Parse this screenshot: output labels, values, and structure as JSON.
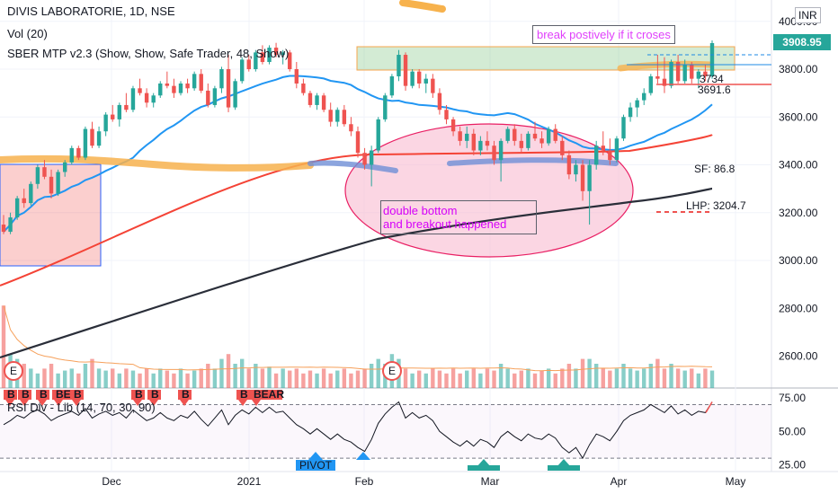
{
  "legend": {
    "main": "DIVIS LABORATORIE, 1D, NSE",
    "vol": "Vol (20)",
    "sber": "SBER MTP v2.3 (Show, Show, Safe Trader, 48, Show)",
    "rsi": "RSI Div - Lib (14, 70, 30, 90)"
  },
  "currency": "INR",
  "last_price_label": "3908.95",
  "annotations": {
    "breakout_note": "break postively if it croses",
    "double_bottom_line1": "double bottom",
    "double_bottom_line2": "and breakout happened",
    "sf": "SF: 86.8",
    "lhp": "LHP: 3204.7",
    "lvl_3734": "3734",
    "lvl_3691": "3691.6",
    "pivot": "PIVOT",
    "bear": "BEAR",
    "b": "B",
    "be": "BE"
  },
  "earnings_marker": "E",
  "colors": {
    "up": "#26a69a",
    "down": "#ef5350",
    "ma_blue": "#2196f3",
    "ma_red": "#f44336",
    "ma_black": "#2a2e39",
    "orange_band": "#f7b24d",
    "highlight_pink": "#f8bbd0",
    "rsi_line": "#131722",
    "vol_avg": "#f6a05a",
    "note_purple": "#e040fb"
  },
  "chart_data": {
    "type": "candlestick",
    "price_axis": {
      "ticks": [
        3000,
        3200,
        3400,
        3600,
        3800,
        4000
      ],
      "min": 2500,
      "max": 4060
    },
    "time_axis": {
      "ticks": [
        "Dec",
        "2021",
        "Feb",
        "Mar",
        "Apr",
        "May"
      ]
    },
    "rsi_axis": {
      "ticks": [
        25,
        50,
        75
      ],
      "overbought": 70,
      "oversold": 30
    },
    "ohlc": [
      [
        3150,
        3190,
        3110,
        3120
      ],
      [
        3120,
        3200,
        3110,
        3180
      ],
      [
        3180,
        3270,
        3170,
        3260
      ],
      [
        3260,
        3300,
        3220,
        3240
      ],
      [
        3240,
        3330,
        3230,
        3320
      ],
      [
        3320,
        3400,
        3300,
        3390
      ],
      [
        3390,
        3420,
        3340,
        3350
      ],
      [
        3350,
        3380,
        3260,
        3280
      ],
      [
        3280,
        3380,
        3270,
        3370
      ],
      [
        3370,
        3420,
        3350,
        3410
      ],
      [
        3410,
        3480,
        3400,
        3470
      ],
      [
        3470,
        3480,
        3420,
        3430
      ],
      [
        3430,
        3560,
        3420,
        3550
      ],
      [
        3550,
        3580,
        3470,
        3480
      ],
      [
        3480,
        3560,
        3470,
        3540
      ],
      [
        3540,
        3620,
        3520,
        3610
      ],
      [
        3610,
        3650,
        3580,
        3590
      ],
      [
        3590,
        3660,
        3560,
        3650
      ],
      [
        3650,
        3700,
        3620,
        3630
      ],
      [
        3630,
        3730,
        3620,
        3720
      ],
      [
        3720,
        3760,
        3690,
        3700
      ],
      [
        3700,
        3720,
        3640,
        3660
      ],
      [
        3660,
        3700,
        3640,
        3690
      ],
      [
        3690,
        3750,
        3680,
        3740
      ],
      [
        3740,
        3790,
        3720,
        3730
      ],
      [
        3730,
        3760,
        3680,
        3700
      ],
      [
        3700,
        3750,
        3690,
        3740
      ],
      [
        3740,
        3760,
        3700,
        3720
      ],
      [
        3720,
        3790,
        3710,
        3780
      ],
      [
        3780,
        3800,
        3700,
        3710
      ],
      [
        3710,
        3740,
        3640,
        3650
      ],
      [
        3650,
        3730,
        3640,
        3720
      ],
      [
        3720,
        3810,
        3700,
        3800
      ],
      [
        3800,
        3860,
        3620,
        3640
      ],
      [
        3640,
        3760,
        3630,
        3750
      ],
      [
        3750,
        3850,
        3740,
        3840
      ],
      [
        3840,
        3860,
        3790,
        3800
      ],
      [
        3800,
        3880,
        3790,
        3870
      ],
      [
        3870,
        3900,
        3820,
        3830
      ],
      [
        3830,
        3900,
        3820,
        3890
      ],
      [
        3890,
        3910,
        3850,
        3860
      ],
      [
        3860,
        3880,
        3820,
        3870
      ],
      [
        3870,
        3880,
        3790,
        3800
      ],
      [
        3800,
        3830,
        3720,
        3740
      ],
      [
        3740,
        3760,
        3690,
        3700
      ],
      [
        3700,
        3710,
        3640,
        3650
      ],
      [
        3650,
        3700,
        3630,
        3690
      ],
      [
        3690,
        3700,
        3620,
        3630
      ],
      [
        3630,
        3660,
        3560,
        3580
      ],
      [
        3580,
        3640,
        3560,
        3630
      ],
      [
        3630,
        3650,
        3560,
        3570
      ],
      [
        3570,
        3600,
        3520,
        3540
      ],
      [
        3540,
        3560,
        3430,
        3450
      ],
      [
        3450,
        3470,
        3380,
        3400
      ],
      [
        3400,
        3480,
        3310,
        3460
      ],
      [
        3460,
        3600,
        3450,
        3590
      ],
      [
        3590,
        3700,
        3580,
        3690
      ],
      [
        3690,
        3780,
        3680,
        3770
      ],
      [
        3770,
        3880,
        3750,
        3860
      ],
      [
        3860,
        3870,
        3710,
        3730
      ],
      [
        3730,
        3800,
        3720,
        3790
      ],
      [
        3790,
        3800,
        3720,
        3740
      ],
      [
        3740,
        3780,
        3700,
        3760
      ],
      [
        3760,
        3780,
        3680,
        3700
      ],
      [
        3700,
        3720,
        3610,
        3630
      ],
      [
        3630,
        3650,
        3570,
        3590
      ],
      [
        3590,
        3600,
        3520,
        3540
      ],
      [
        3540,
        3560,
        3480,
        3500
      ],
      [
        3500,
        3560,
        3470,
        3530
      ],
      [
        3530,
        3550,
        3440,
        3460
      ],
      [
        3460,
        3520,
        3440,
        3500
      ],
      [
        3500,
        3540,
        3460,
        3480
      ],
      [
        3480,
        3500,
        3400,
        3420
      ],
      [
        3420,
        3510,
        3330,
        3500
      ],
      [
        3500,
        3560,
        3490,
        3550
      ],
      [
        3550,
        3570,
        3480,
        3500
      ],
      [
        3500,
        3530,
        3450,
        3470
      ],
      [
        3470,
        3540,
        3460,
        3530
      ],
      [
        3530,
        3580,
        3500,
        3510
      ],
      [
        3510,
        3540,
        3470,
        3490
      ],
      [
        3490,
        3560,
        3480,
        3550
      ],
      [
        3550,
        3570,
        3490,
        3500
      ],
      [
        3500,
        3520,
        3420,
        3440
      ],
      [
        3440,
        3460,
        3340,
        3360
      ],
      [
        3360,
        3420,
        3330,
        3400
      ],
      [
        3400,
        3420,
        3250,
        3290
      ],
      [
        3290,
        3420,
        3150,
        3400
      ],
      [
        3400,
        3500,
        3380,
        3480
      ],
      [
        3480,
        3540,
        3440,
        3460
      ],
      [
        3460,
        3510,
        3400,
        3420
      ],
      [
        3420,
        3520,
        3410,
        3510
      ],
      [
        3510,
        3610,
        3500,
        3600
      ],
      [
        3600,
        3660,
        3580,
        3640
      ],
      [
        3640,
        3680,
        3600,
        3670
      ],
      [
        3670,
        3720,
        3650,
        3700
      ],
      [
        3700,
        3780,
        3690,
        3770
      ],
      [
        3770,
        3860,
        3740,
        3760
      ],
      [
        3760,
        3850,
        3700,
        3730
      ],
      [
        3730,
        3840,
        3720,
        3830
      ],
      [
        3830,
        3860,
        3740,
        3750
      ],
      [
        3750,
        3840,
        3740,
        3820
      ],
      [
        3820,
        3830,
        3740,
        3760
      ],
      [
        3760,
        3800,
        3720,
        3790
      ],
      [
        3790,
        3820,
        3750,
        3770
      ],
      [
        3770,
        3920,
        3760,
        3909
      ]
    ],
    "volume": [
      0.85,
      0.35,
      0.3,
      0.25,
      0.2,
      0.15,
      0.2,
      0.25,
      0.15,
      0.18,
      0.2,
      0.15,
      0.25,
      0.3,
      0.2,
      0.18,
      0.2,
      0.15,
      0.2,
      0.18,
      0.15,
      0.2,
      0.15,
      0.2,
      0.18,
      0.15,
      0.2,
      0.15,
      0.18,
      0.2,
      0.25,
      0.2,
      0.3,
      0.35,
      0.25,
      0.3,
      0.2,
      0.25,
      0.2,
      0.22,
      0.15,
      0.2,
      0.18,
      0.2,
      0.15,
      0.18,
      0.15,
      0.2,
      0.15,
      0.18,
      0.2,
      0.15,
      0.18,
      0.2,
      0.25,
      0.3,
      0.25,
      0.35,
      0.3,
      0.2,
      0.15,
      0.18,
      0.15,
      0.2,
      0.18,
      0.15,
      0.2,
      0.15,
      0.18,
      0.2,
      0.15,
      0.2,
      0.18,
      0.25,
      0.2,
      0.15,
      0.18,
      0.2,
      0.15,
      0.18,
      0.2,
      0.15,
      0.2,
      0.25,
      0.2,
      0.3,
      0.3,
      0.25,
      0.2,
      0.18,
      0.2,
      0.25,
      0.2,
      0.18,
      0.2,
      0.25,
      0.3,
      0.2,
      0.25,
      0.2,
      0.18,
      0.2,
      0.15,
      0.2,
      0.18
    ],
    "rsi": [
      55,
      58,
      62,
      60,
      64,
      66,
      63,
      58,
      61,
      63,
      65,
      62,
      67,
      60,
      63,
      65,
      62,
      64,
      60,
      66,
      62,
      58,
      60,
      64,
      60,
      58,
      62,
      60,
      65,
      59,
      54,
      60,
      66,
      55,
      62,
      66,
      63,
      68,
      64,
      68,
      64,
      65,
      60,
      55,
      52,
      48,
      52,
      48,
      44,
      48,
      44,
      42,
      38,
      35,
      44,
      56,
      63,
      68,
      72,
      60,
      64,
      60,
      62,
      58,
      50,
      46,
      42,
      39,
      43,
      39,
      44,
      42,
      38,
      46,
      50,
      46,
      43,
      48,
      45,
      44,
      48,
      45,
      38,
      34,
      38,
      30,
      40,
      48,
      46,
      43,
      50,
      58,
      62,
      64,
      66,
      70,
      67,
      64,
      69,
      63,
      66,
      62,
      65,
      64,
      72
    ]
  }
}
